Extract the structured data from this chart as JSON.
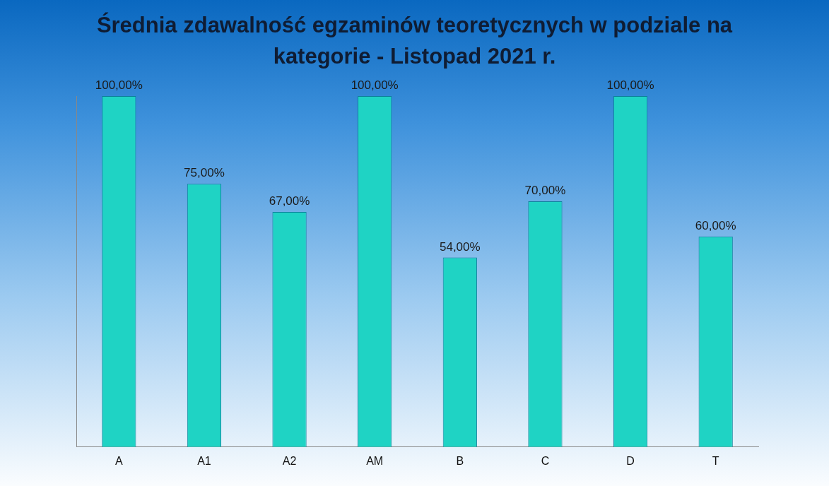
{
  "chart_data": {
    "type": "bar",
    "title": "Średnia zdawalność egzaminów teoretycznych w podziale na kategorie - Listopad 2021 r.",
    "categories": [
      "A",
      "A1",
      "A2",
      "AM",
      "B",
      "C",
      "D",
      "T"
    ],
    "values": [
      100,
      75,
      67,
      100,
      54,
      70,
      100,
      60
    ],
    "value_labels": [
      "100,00%",
      "75,00%",
      "67,00%",
      "100,00%",
      "54,00%",
      "70,00%",
      "100,00%",
      "60,00%"
    ],
    "color": "#1fd3c4",
    "grid": false,
    "tick_labels": "x",
    "legend": false
  }
}
